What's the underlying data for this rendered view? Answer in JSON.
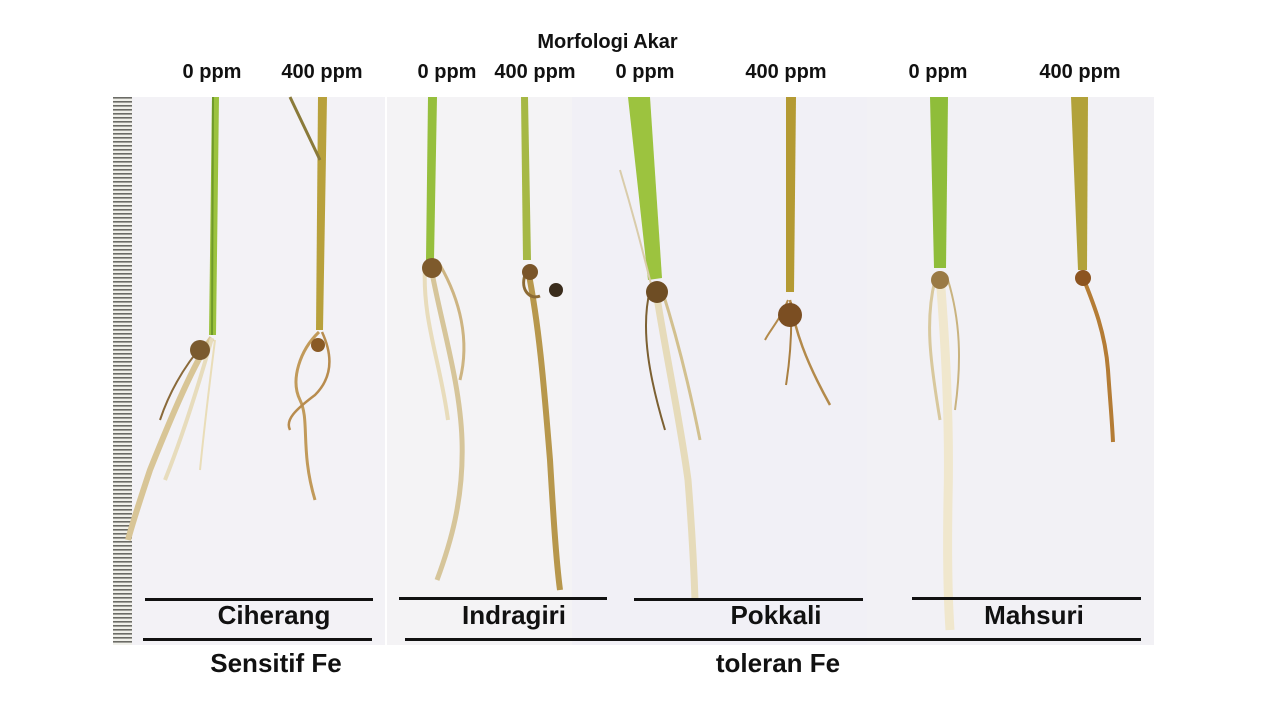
{
  "title": "Morfologi Akar",
  "treatments": [
    "0 ppm",
    "400 ppm",
    "0 ppm",
    "400 ppm",
    "0 ppm",
    "400 ppm",
    "0 ppm",
    "400 ppm"
  ],
  "cultivars": [
    "Ciherang",
    "Indragiri",
    "Pokkali",
    "Mahsuri"
  ],
  "groups": [
    "Sensitif Fe",
    "toleran Fe"
  ],
  "colors": {
    "panel_background": "#f2f1f5",
    "leaf_green": "#8fbf3a",
    "stressed_stem": "#b09a3a",
    "healthy_root": "#e9dcb8",
    "iron_root": "#a8742e",
    "label_text": "#111111"
  }
}
